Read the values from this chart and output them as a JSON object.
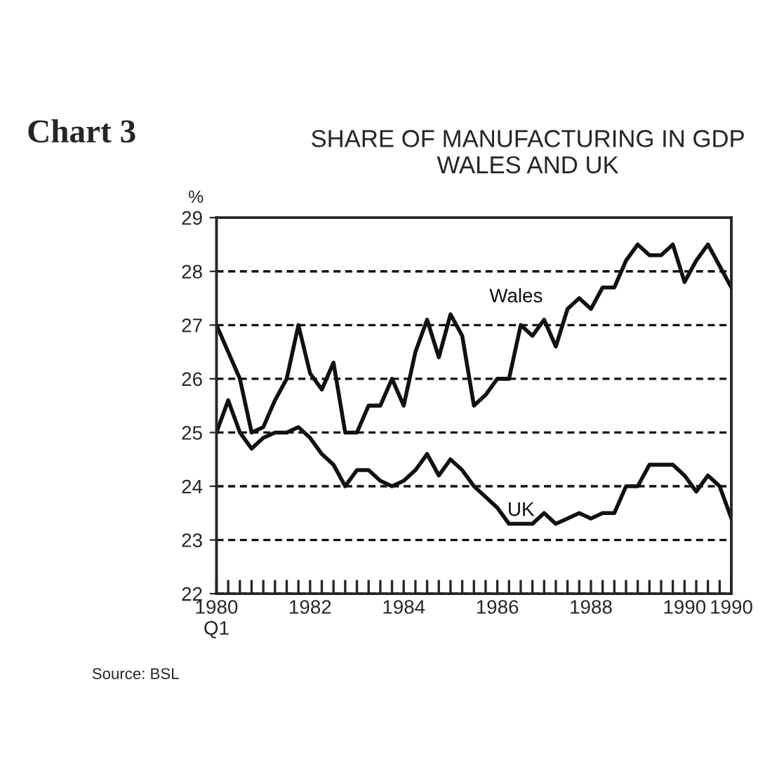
{
  "chart_data": {
    "type": "line",
    "title": "SHARE OF MANUFACTURING IN GDP\nWALES AND UK",
    "ylabel": "%",
    "categories": [
      "1980\nQ1",
      null,
      null,
      null,
      null,
      null,
      null,
      null,
      "1982",
      null,
      null,
      null,
      null,
      null,
      null,
      null,
      "1984",
      null,
      null,
      null,
      null,
      null,
      null,
      null,
      "1986",
      null,
      null,
      null,
      null,
      null,
      null,
      null,
      "1988",
      null,
      null,
      null,
      null,
      null,
      null,
      null,
      "1990",
      null,
      null,
      null,
      "1990"
    ],
    "series": [
      {
        "name": "Wales",
        "color": "#111111",
        "values": [
          27.0,
          26.5,
          26.0,
          25.0,
          25.1,
          25.6,
          26.0,
          27.0,
          26.1,
          25.8,
          26.3,
          25.0,
          25.0,
          25.5,
          25.5,
          26.0,
          25.5,
          26.5,
          27.1,
          26.4,
          27.2,
          26.8,
          25.5,
          25.7,
          26.0,
          26.0,
          27.0,
          26.8,
          27.1,
          26.6,
          27.3,
          27.5,
          27.3,
          27.7,
          27.7,
          28.2,
          28.5,
          28.3,
          28.3,
          28.5,
          27.8,
          28.2,
          28.5,
          28.1,
          27.7
        ]
      },
      {
        "name": "UK",
        "color": "#111111",
        "values": [
          25.0,
          25.6,
          25.0,
          24.7,
          24.9,
          25.0,
          25.0,
          25.1,
          24.9,
          24.6,
          24.4,
          24.0,
          24.3,
          24.3,
          24.1,
          24.0,
          24.1,
          24.3,
          24.6,
          24.2,
          24.5,
          24.3,
          24.0,
          23.8,
          23.6,
          23.3,
          23.3,
          23.3,
          23.5,
          23.3,
          23.4,
          23.5,
          23.4,
          23.5,
          23.5,
          24.0,
          24.0,
          24.4,
          24.4,
          24.4,
          24.2,
          23.9,
          24.2,
          24.0,
          23.4
        ]
      }
    ],
    "ylim": [
      22,
      29
    ],
    "yticks": [
      22,
      23,
      24,
      25,
      26,
      27,
      28,
      29
    ],
    "grid": "y",
    "line_style": "solid",
    "annotations": [
      "Chart 3",
      "Source: BSL"
    ]
  }
}
